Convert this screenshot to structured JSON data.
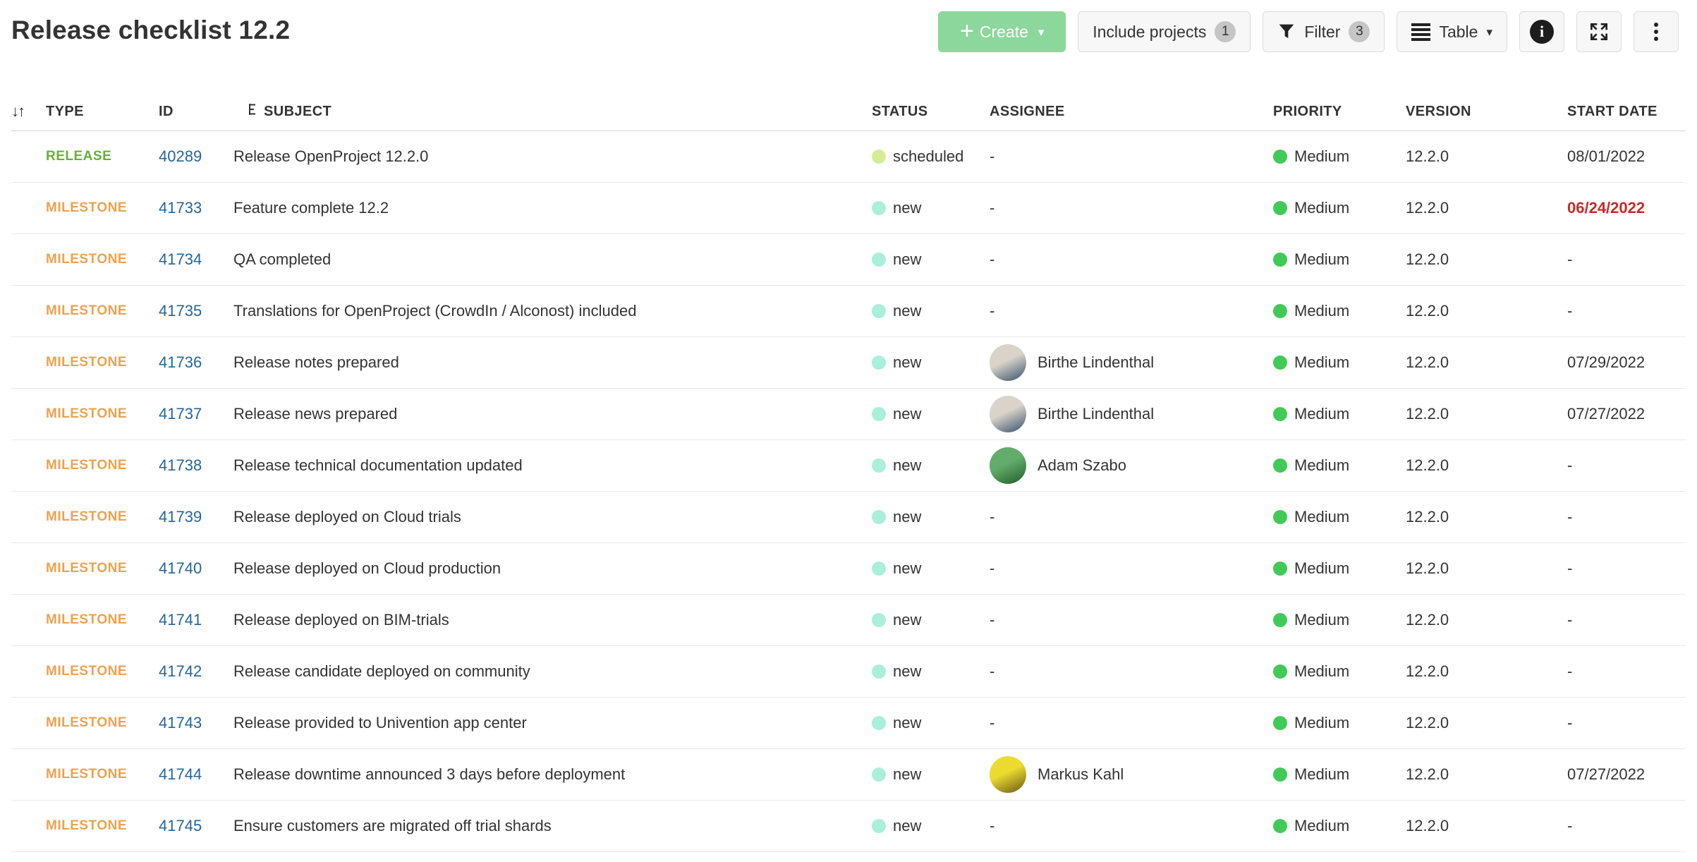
{
  "page": {
    "title": "Release checklist 12.2"
  },
  "toolbar": {
    "create": {
      "label": "Create"
    },
    "include_projects": {
      "label": "Include projects",
      "badge": "1"
    },
    "filter": {
      "label": "Filter",
      "badge": "3"
    },
    "table_view": {
      "label": "Table"
    }
  },
  "icons": {
    "plus": "+",
    "caret_down": "▾",
    "sort": "↓↑",
    "info": "i",
    "filter_icon": "funnel",
    "table_icon": "rows",
    "expand_icon": "arrows-out",
    "more_icon": "kebab"
  },
  "colors": {
    "create_button_bg": "#8CD79B",
    "release_type": "#66B03B",
    "milestone_type": "#ECA24F",
    "id_link": "#24659A",
    "overdue_date": "#C92A26",
    "priority_dot": "#41CA57",
    "status_dots": {
      "scheduled": "#D6EC93",
      "new": "#A9EFDA"
    }
  },
  "table": {
    "columns": [
      {
        "label": "TYPE"
      },
      {
        "label": "ID"
      },
      {
        "label": "SUBJECT"
      },
      {
        "label": "STATUS"
      },
      {
        "label": "ASSIGNEE"
      },
      {
        "label": "PRIORITY"
      },
      {
        "label": "VERSION"
      },
      {
        "label": "START DATE"
      }
    ],
    "rows": [
      {
        "type": "RELEASE",
        "id": "40289",
        "subject": "Release OpenProject 12.2.0",
        "status": "scheduled",
        "assignee": "-",
        "priority": "Medium",
        "version": "12.2.0",
        "start_date": "08/01/2022",
        "overdue": false
      },
      {
        "type": "MILESTONE",
        "id": "41733",
        "subject": "Feature complete 12.2",
        "status": "new",
        "assignee": "-",
        "priority": "Medium",
        "version": "12.2.0",
        "start_date": "06/24/2022",
        "overdue": true
      },
      {
        "type": "MILESTONE",
        "id": "41734",
        "subject": "QA completed",
        "status": "new",
        "assignee": "-",
        "priority": "Medium",
        "version": "12.2.0",
        "start_date": "-",
        "overdue": false
      },
      {
        "type": "MILESTONE",
        "id": "41735",
        "subject": "Translations for OpenProject (CrowdIn / Alconost) included",
        "status": "new",
        "assignee": "-",
        "priority": "Medium",
        "version": "12.2.0",
        "start_date": "-",
        "overdue": false
      },
      {
        "type": "MILESTONE",
        "id": "41736",
        "subject": "Release notes prepared",
        "status": "new",
        "assignee": "Birthe Lindenthal",
        "avatar": {
          "from": "#D9D3C9",
          "to": "#33506B"
        },
        "priority": "Medium",
        "version": "12.2.0",
        "start_date": "07/29/2022",
        "overdue": false
      },
      {
        "type": "MILESTONE",
        "id": "41737",
        "subject": "Release news prepared",
        "status": "new",
        "assignee": "Birthe Lindenthal",
        "avatar": {
          "from": "#D9D3C9",
          "to": "#33506B"
        },
        "priority": "Medium",
        "version": "12.2.0",
        "start_date": "07/27/2022",
        "overdue": false
      },
      {
        "type": "MILESTONE",
        "id": "41738",
        "subject": "Release technical documentation updated",
        "status": "new",
        "assignee": "Adam Szabo",
        "avatar": {
          "from": "#63AC6C",
          "to": "#1F5D2A"
        },
        "priority": "Medium",
        "version": "12.2.0",
        "start_date": "-",
        "overdue": false
      },
      {
        "type": "MILESTONE",
        "id": "41739",
        "subject": "Release deployed on Cloud trials",
        "status": "new",
        "assignee": "-",
        "priority": "Medium",
        "version": "12.2.0",
        "start_date": "-",
        "overdue": false
      },
      {
        "type": "MILESTONE",
        "id": "41740",
        "subject": "Release deployed on Cloud production",
        "status": "new",
        "assignee": "-",
        "priority": "Medium",
        "version": "12.2.0",
        "start_date": "-",
        "overdue": false
      },
      {
        "type": "MILESTONE",
        "id": "41741",
        "subject": "Release deployed on BIM-trials",
        "status": "new",
        "assignee": "-",
        "priority": "Medium",
        "version": "12.2.0",
        "start_date": "-",
        "overdue": false
      },
      {
        "type": "MILESTONE",
        "id": "41742",
        "subject": "Release candidate deployed on community",
        "status": "new",
        "assignee": "-",
        "priority": "Medium",
        "version": "12.2.0",
        "start_date": "-",
        "overdue": false
      },
      {
        "type": "MILESTONE",
        "id": "41743",
        "subject": "Release provided to Univention app center",
        "status": "new",
        "assignee": "-",
        "priority": "Medium",
        "version": "12.2.0",
        "start_date": "-",
        "overdue": false
      },
      {
        "type": "MILESTONE",
        "id": "41744",
        "subject": "Release downtime announced 3 days before deployment",
        "status": "new",
        "assignee": "Markus Kahl",
        "avatar": {
          "from": "#EADB2E",
          "to": "#6B5518"
        },
        "priority": "Medium",
        "version": "12.2.0",
        "start_date": "07/27/2022",
        "overdue": false
      },
      {
        "type": "MILESTONE",
        "id": "41745",
        "subject": "Ensure customers are migrated off trial shards",
        "status": "new",
        "assignee": "-",
        "priority": "Medium",
        "version": "12.2.0",
        "start_date": "-",
        "overdue": false
      }
    ]
  }
}
